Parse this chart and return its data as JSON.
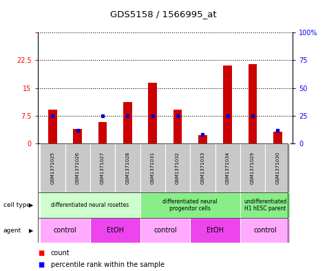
{
  "title": "GDS5158 / 1566995_at",
  "samples": [
    "GSM1371025",
    "GSM1371026",
    "GSM1371027",
    "GSM1371028",
    "GSM1371031",
    "GSM1371032",
    "GSM1371033",
    "GSM1371034",
    "GSM1371029",
    "GSM1371030"
  ],
  "counts": [
    9.2,
    4.0,
    5.8,
    11.2,
    16.5,
    9.2,
    2.2,
    21.0,
    21.5,
    3.2
  ],
  "percentile_ranks": [
    25,
    12,
    25,
    25,
    25,
    25,
    8,
    25,
    25,
    12
  ],
  "ylim_left": [
    0,
    30
  ],
  "ylim_right": [
    0,
    100
  ],
  "yticks_left": [
    0,
    7.5,
    15,
    22.5,
    30
  ],
  "yticks_right": [
    0,
    25,
    50,
    75,
    100
  ],
  "cell_type_groups": [
    {
      "label": "differentiated neural rosettes",
      "start": 0,
      "end": 3,
      "color": "#ccffcc"
    },
    {
      "label": "differentiated neural\nprogenitor cells",
      "start": 4,
      "end": 7,
      "color": "#88ee88"
    },
    {
      "label": "undifferentiated\nH1 hESC parent",
      "start": 8,
      "end": 9,
      "color": "#88ee88"
    }
  ],
  "agent_groups": [
    {
      "label": "control",
      "start": 0,
      "end": 1,
      "color": "#ffaaff"
    },
    {
      "label": "EtOH",
      "start": 2,
      "end": 3,
      "color": "#ee44ee"
    },
    {
      "label": "control",
      "start": 4,
      "end": 5,
      "color": "#ffaaff"
    },
    {
      "label": "EtOH",
      "start": 6,
      "end": 7,
      "color": "#ee44ee"
    },
    {
      "label": "control",
      "start": 8,
      "end": 9,
      "color": "#ffaaff"
    }
  ],
  "bar_color": "#cc0000",
  "percentile_color": "#0000cc",
  "sample_bg_color": "#c8c8c8",
  "background_color": "#ffffff"
}
